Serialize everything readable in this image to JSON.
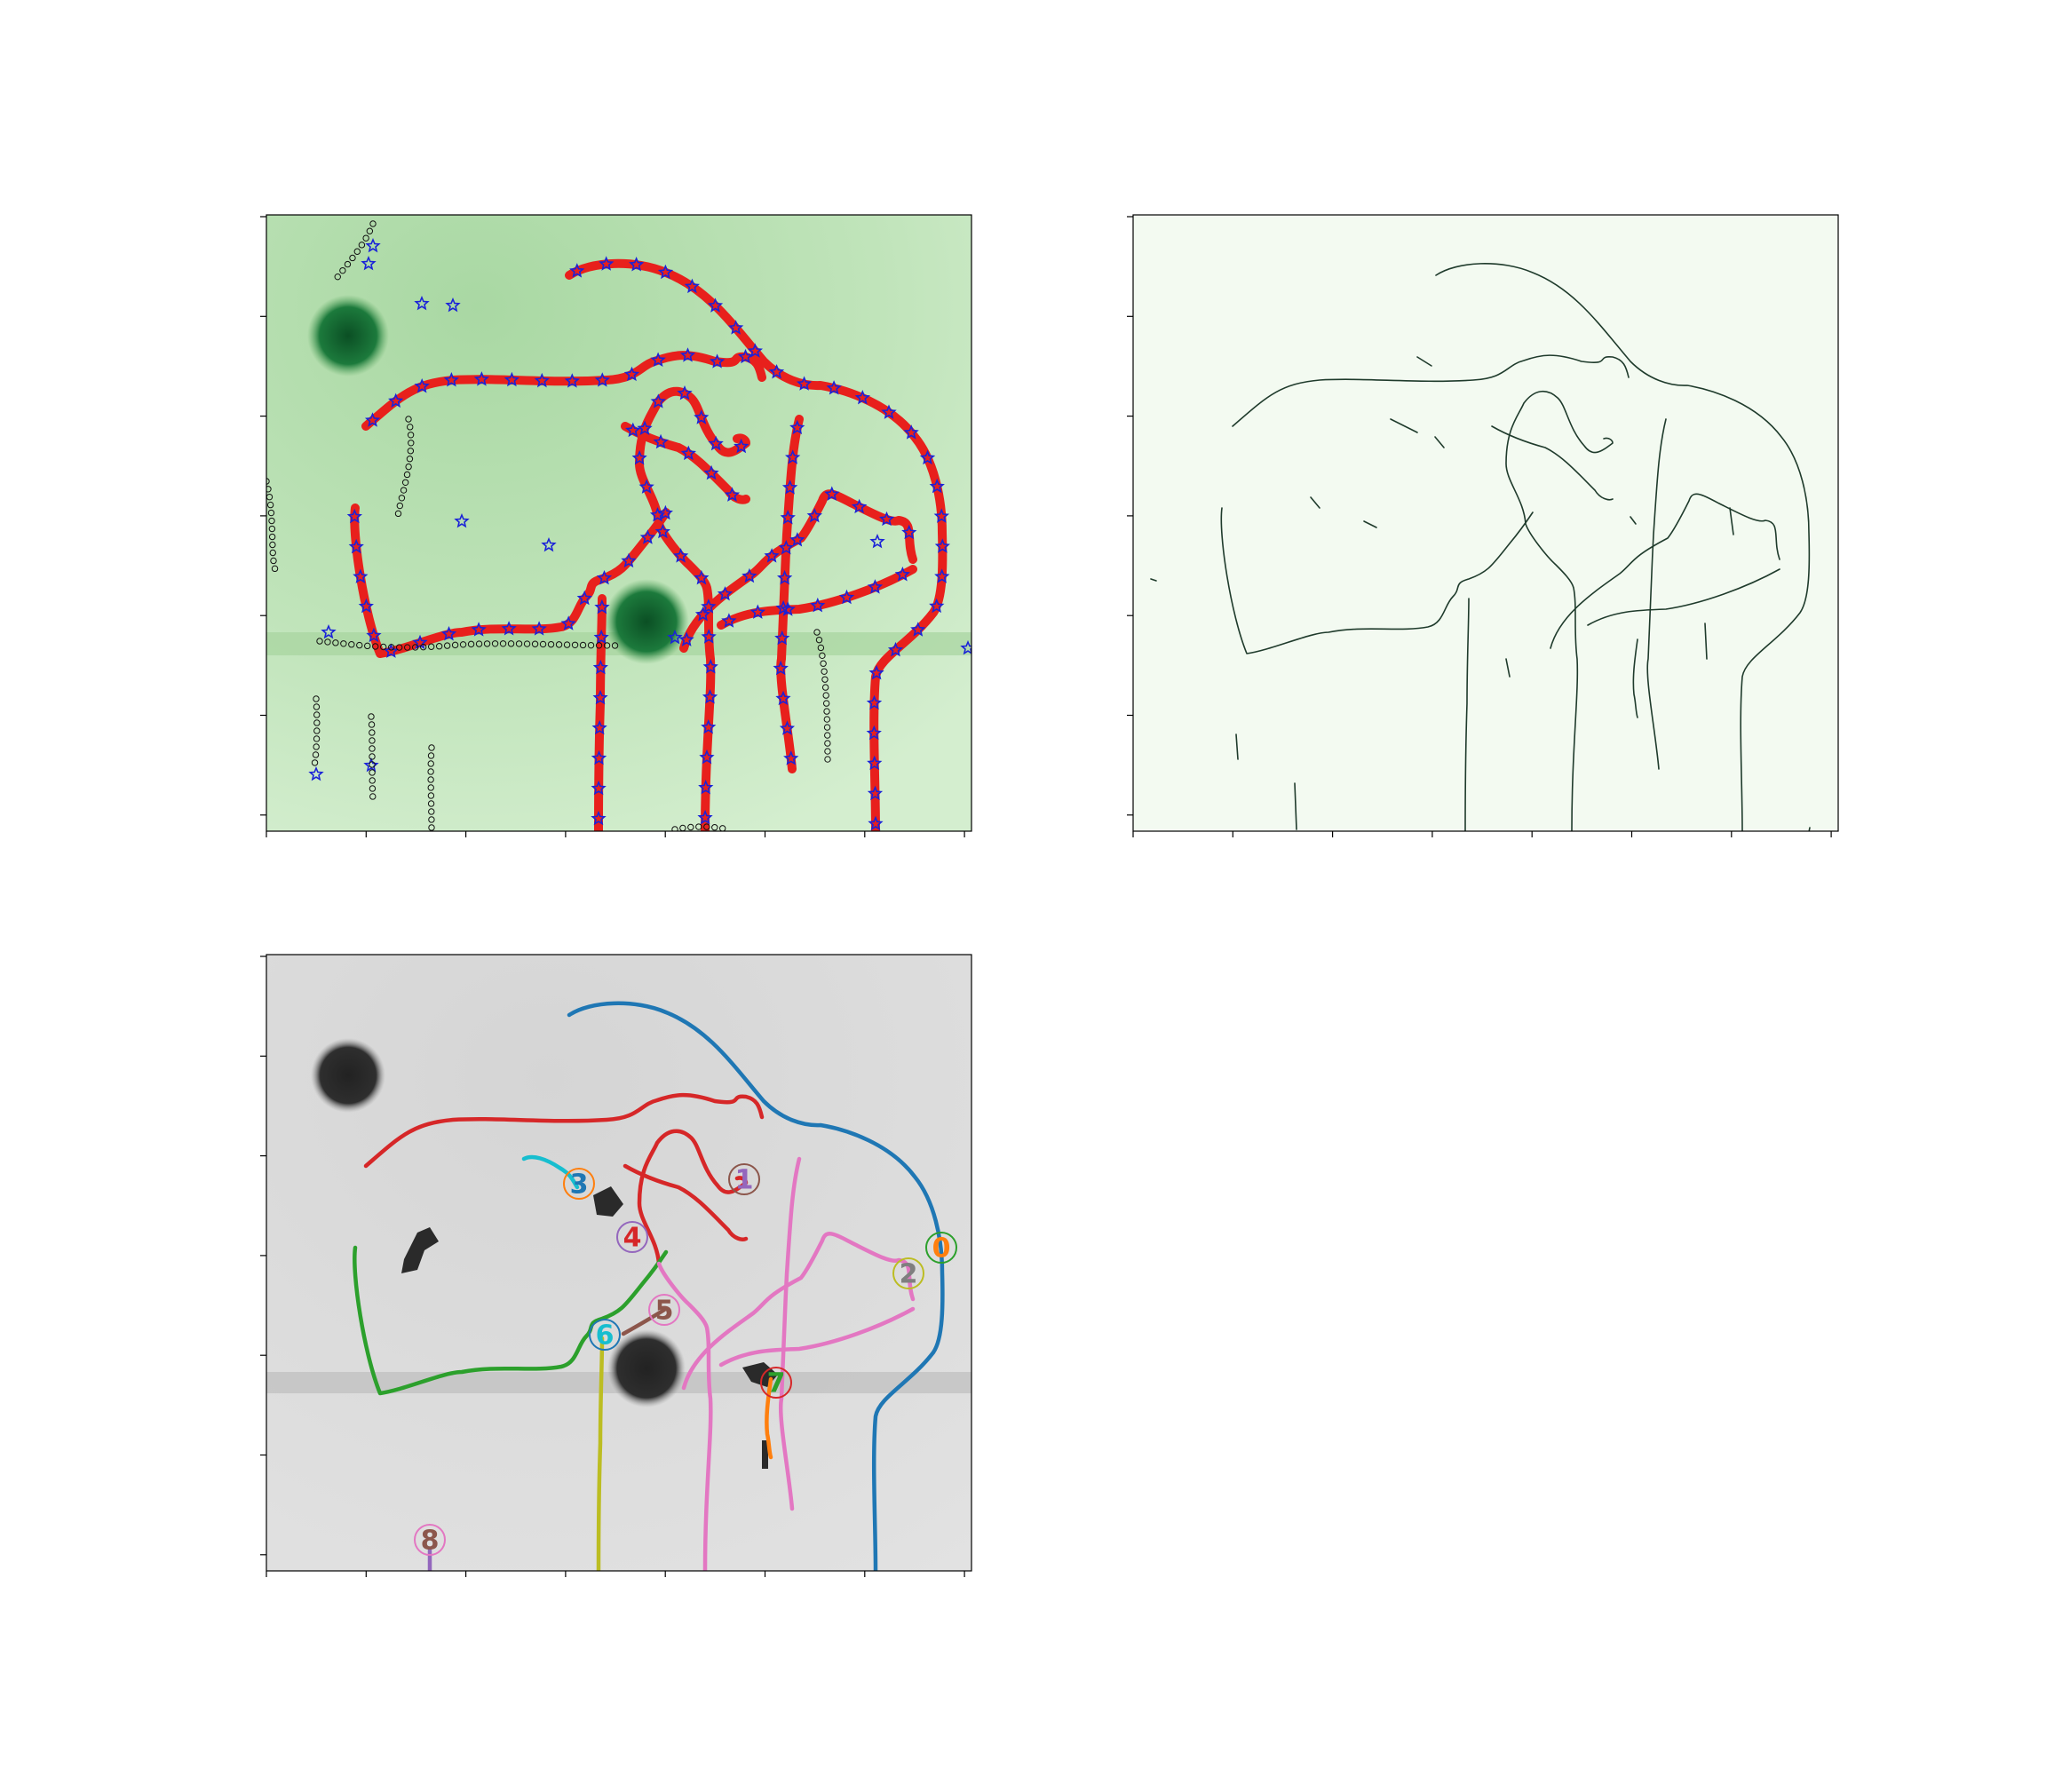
{
  "figure": {
    "panels": [
      "tracking-overlay",
      "skeleton-map",
      "labeled-traces"
    ]
  },
  "colors": {
    "background": "#ffffff",
    "green_field": "#b9e0b3",
    "green_blob": "#0e5a2a",
    "red_trace": "#e8201c",
    "star": "#1a22d8",
    "skeleton_bg": "#f3faf1",
    "skeleton_line": "#1f3b2c",
    "gray_field": "#d9d9d9",
    "gray_blob": "#2b2b2b",
    "blue": "#1f77b4",
    "orange": "#ff7f0e",
    "green": "#2ca02c",
    "red": "#d62728",
    "purple": "#9467bd",
    "brown": "#8c564b",
    "pink": "#e377c2",
    "gray": "#7f7f7f",
    "olive": "#bcbd22",
    "cyan": "#17becf"
  },
  "labels": [
    {
      "id": "0",
      "text_color": "#ff7f0e",
      "ring_color": "#2ca02c",
      "line_color": "#1f77b4"
    },
    {
      "id": "1",
      "text_color": "#9467bd",
      "ring_color": "#8c564b",
      "line_color": "#d62728"
    },
    {
      "id": "2",
      "text_color": "#7f7f7f",
      "ring_color": "#bcbd22",
      "line_color": "#e377c2"
    },
    {
      "id": "3",
      "text_color": "#1f77b4",
      "ring_color": "#ff7f0e",
      "line_color": "#17becf"
    },
    {
      "id": "4",
      "text_color": "#d62728",
      "ring_color": "#9467bd",
      "line_color": "#2ca02c"
    },
    {
      "id": "5",
      "text_color": "#8c564b",
      "ring_color": "#e377c2",
      "line_color": "#8c564b"
    },
    {
      "id": "6",
      "text_color": "#17becf",
      "ring_color": "#1f77b4",
      "line_color": "#bcbd22"
    },
    {
      "id": "7",
      "text_color": "#2ca02c",
      "ring_color": "#d62728",
      "line_color": "#ff7f0e"
    },
    {
      "id": "8",
      "text_color": "#8c564b",
      "ring_color": "#e377c2",
      "line_color": "#9467bd"
    }
  ]
}
